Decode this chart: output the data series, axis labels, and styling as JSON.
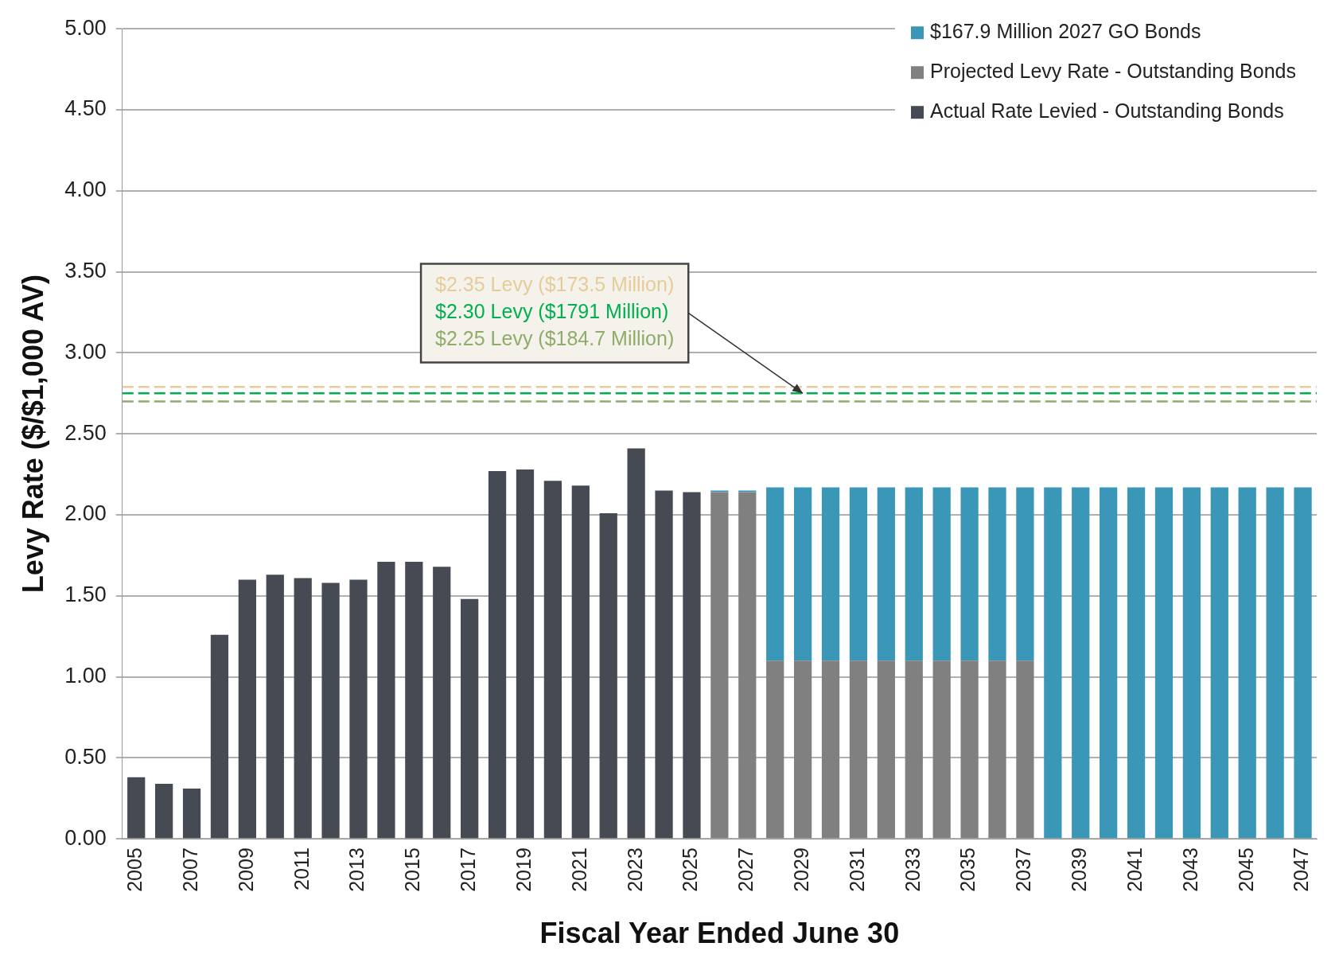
{
  "chart_data": {
    "type": "bar",
    "stacked": true,
    "xlabel": "Fiscal Year Ended June 30",
    "ylabel": "Levy Rate ($/$1,000 AV)",
    "categories": [
      "2005",
      null,
      "2007",
      null,
      "2009",
      null,
      "2011",
      null,
      "2013",
      null,
      "2015",
      null,
      "2017",
      null,
      "2019",
      null,
      "2021",
      null,
      "2023",
      null,
      "2025",
      null,
      "2027",
      null,
      "2029",
      null,
      "2031",
      null,
      "2033",
      null,
      "2035",
      null,
      "2037",
      null,
      "2039",
      null,
      "2041",
      null,
      "2043",
      null,
      "2045",
      null,
      "2047"
    ],
    "series": [
      {
        "name": "Actual Rate Levied - Outstanding Bonds",
        "color": "#464a53",
        "values": [
          0.38,
          0.34,
          0.31,
          1.26,
          1.6,
          1.63,
          1.61,
          1.58,
          1.6,
          1.71,
          1.71,
          1.68,
          1.48,
          2.27,
          2.28,
          2.21,
          2.18,
          2.01,
          2.41,
          2.15,
          2.14,
          null,
          null,
          null,
          null,
          null,
          null,
          null,
          null,
          null,
          null,
          null,
          null,
          null,
          null,
          null,
          null,
          null,
          null,
          null,
          null,
          null,
          null
        ]
      },
      {
        "name": "Projected Levy Rate - Outstanding Bonds",
        "color": "#808080",
        "values": [
          null,
          null,
          null,
          null,
          null,
          null,
          null,
          null,
          null,
          null,
          null,
          null,
          null,
          null,
          null,
          null,
          null,
          null,
          null,
          null,
          null,
          2.14,
          2.14,
          1.1,
          1.1,
          1.1,
          1.1,
          1.1,
          1.1,
          1.1,
          1.1,
          1.1,
          1.1,
          null,
          null,
          null,
          null,
          null,
          null,
          null,
          null,
          null,
          null
        ]
      },
      {
        "name": "$167.9 Million 2027 GO Bonds",
        "color": "#3a97b8",
        "values": [
          null,
          null,
          null,
          null,
          null,
          null,
          null,
          null,
          null,
          null,
          null,
          null,
          null,
          null,
          null,
          null,
          null,
          null,
          null,
          null,
          null,
          0.01,
          0.01,
          1.07,
          1.07,
          1.07,
          1.07,
          1.07,
          1.07,
          1.07,
          1.07,
          1.07,
          1.07,
          2.17,
          2.17,
          2.17,
          2.17,
          2.17,
          2.17,
          2.17,
          2.17,
          2.17,
          2.17
        ]
      }
    ],
    "ylim": [
      0,
      5
    ],
    "yticks": [
      {
        "value": 0,
        "label": "0.00"
      },
      {
        "value": 0.5,
        "label": "0.50"
      },
      {
        "value": 1,
        "label": "1.00"
      },
      {
        "value": 1.5,
        "label": "1.50"
      },
      {
        "value": 2,
        "label": "2.00"
      },
      {
        "value": 2.5,
        "label": "2.50"
      },
      {
        "value": 3,
        "label": "3.00"
      },
      {
        "value": 3.5,
        "label": "3.50"
      },
      {
        "value": 4,
        "label": "4.00"
      },
      {
        "value": 4.5,
        "label": "4.50"
      },
      {
        "value": 5,
        "label": "5.00"
      }
    ],
    "grid": "y",
    "legend": "top right",
    "ref_lines": [
      {
        "axis": "y",
        "value": 2.79,
        "color": "#e6cc9a",
        "line_style": "dashed"
      },
      {
        "axis": "y",
        "value": 2.75,
        "color": "#00b050",
        "line_style": "dashed"
      },
      {
        "axis": "y",
        "value": 2.7,
        "color": "#8fac6a",
        "line_style": "dashed"
      }
    ],
    "annotations": [
      "$2.35 Levy ($173.5 Million)",
      {
        "text": "$2.30 Levy ($1791 Million)",
        "x": "2029",
        "y": 2.75
      },
      "$2.25 Levy ($184.7 Million)"
    ]
  }
}
